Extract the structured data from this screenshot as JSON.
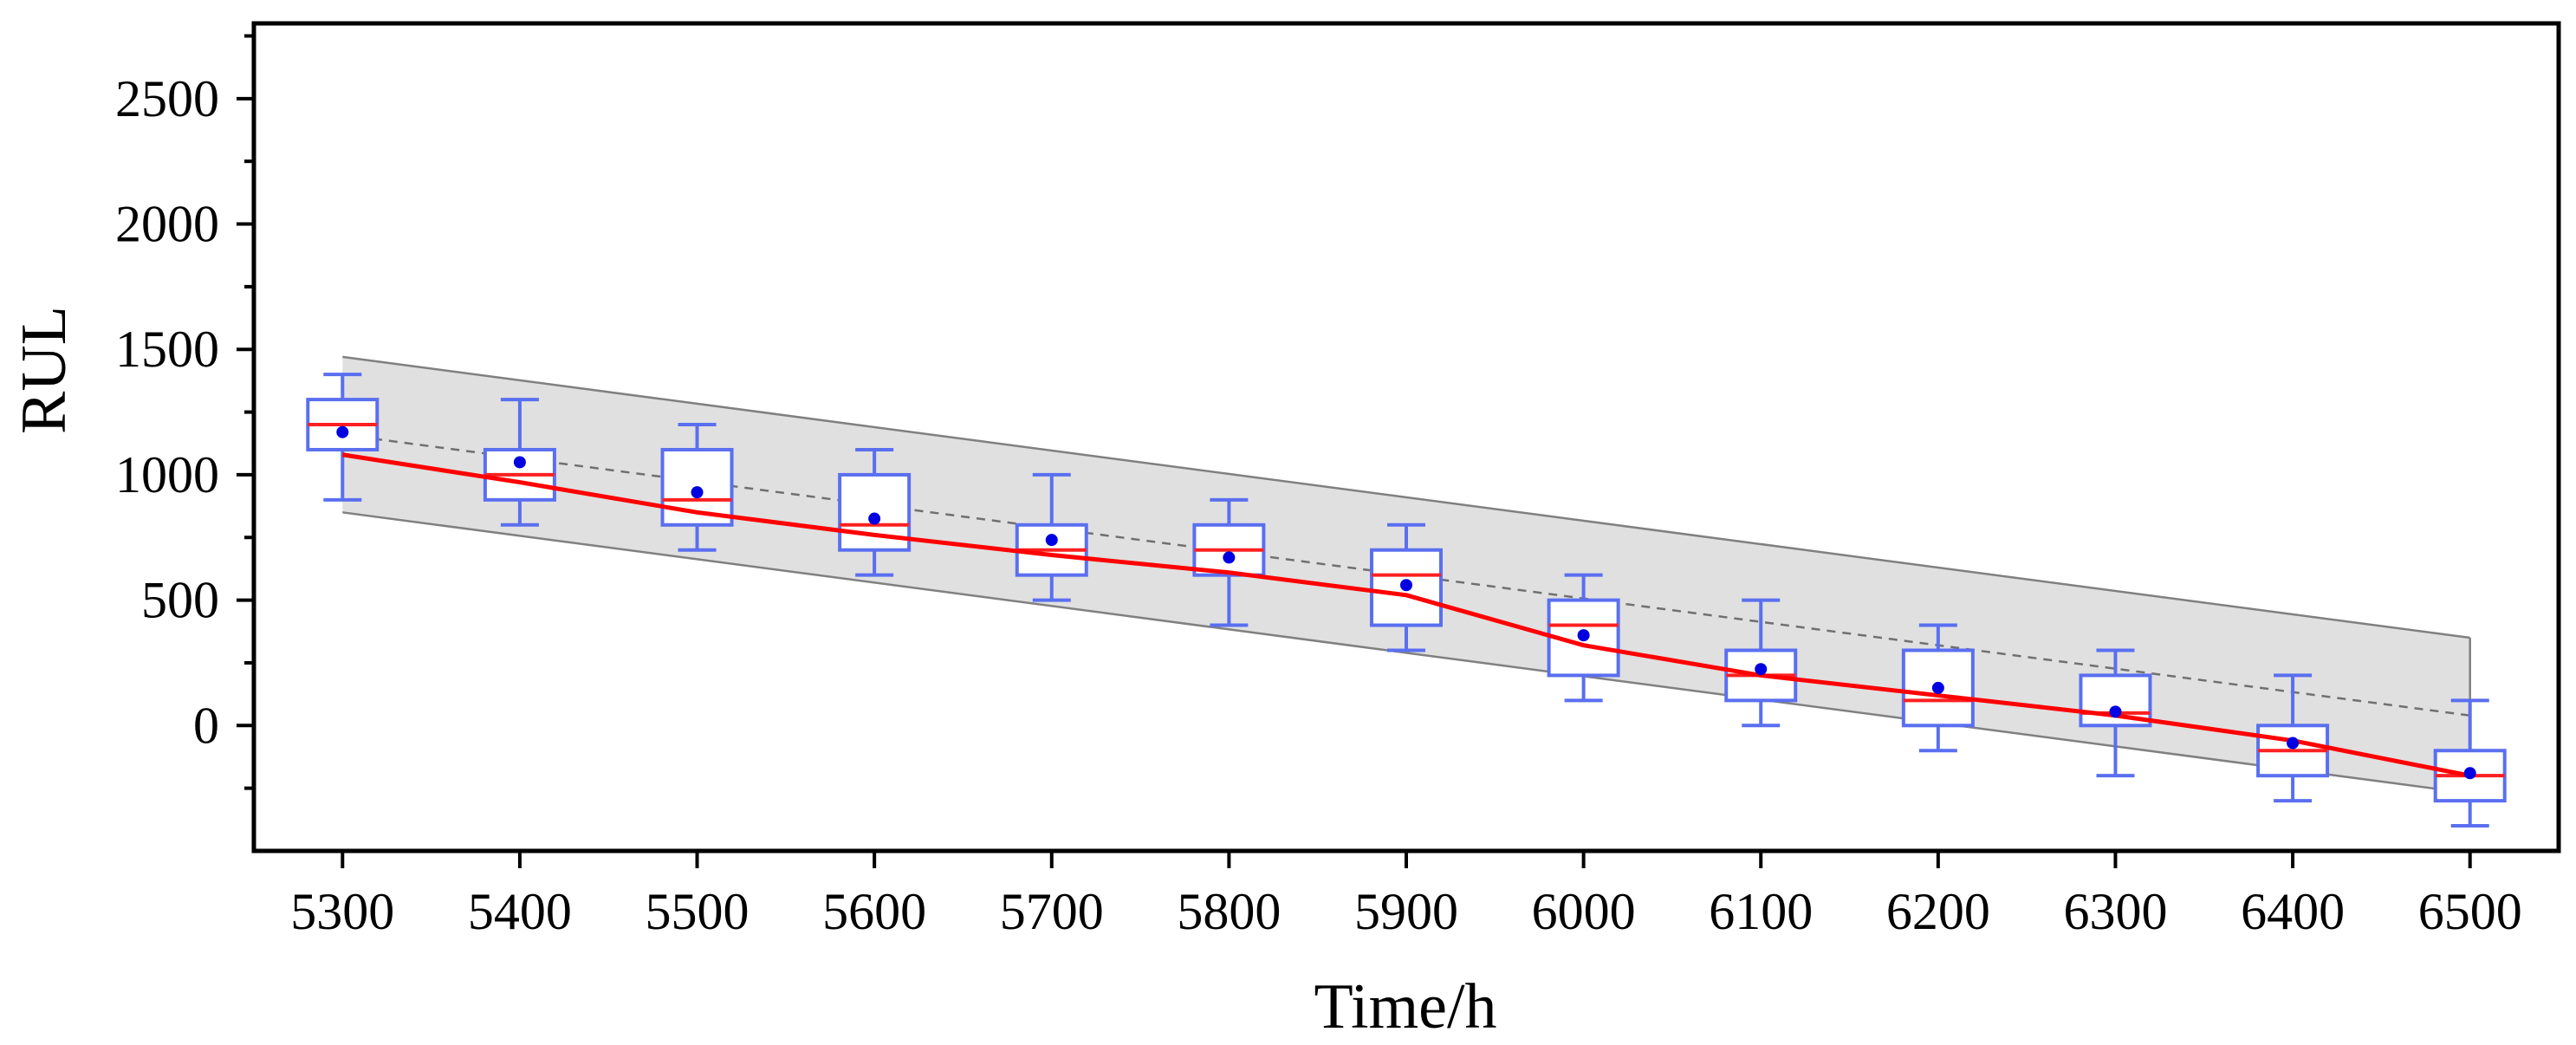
{
  "chart_data": {
    "type": "box",
    "title": "",
    "xlabel": "Time/h",
    "ylabel": "RUL",
    "xlim": [
      5250,
      6550
    ],
    "ylim": [
      -500,
      2800
    ],
    "x_ticks": [
      5300,
      5400,
      5500,
      5600,
      5700,
      5800,
      5900,
      6000,
      6100,
      6200,
      6300,
      6400,
      6500
    ],
    "x_tick_labels": [
      "5300",
      "5400",
      "5500",
      "5600",
      "5700",
      "5800",
      "5900",
      "6000",
      "6100",
      "6200",
      "6300",
      "6400",
      "6500"
    ],
    "y_ticks": [
      0,
      500,
      1000,
      1500,
      2000,
      2500
    ],
    "y_tick_labels": [
      "0",
      "500",
      "1000",
      "1500",
      "2000",
      "2500"
    ],
    "y_minor_ticks": [
      -250,
      250,
      750,
      1250,
      1750,
      2250,
      2750
    ],
    "grid": false,
    "colors": {
      "box": "#5a6ff0",
      "median": "#ff2020",
      "mean_point": "#0000e0",
      "prediction_line": "#ff0000",
      "band_fill": "#e0e0e0",
      "band_edge": "#808080",
      "true_line": "#707070"
    },
    "boxes": [
      {
        "x": 5300,
        "whisker_low": 900,
        "q1": 1100,
        "median": 1200,
        "q3": 1300,
        "whisker_high": 1400,
        "mean": 1170
      },
      {
        "x": 5400,
        "whisker_low": 800,
        "q1": 900,
        "median": 1000,
        "q3": 1100,
        "whisker_high": 1300,
        "mean": 1050
      },
      {
        "x": 5500,
        "whisker_low": 700,
        "q1": 800,
        "median": 900,
        "q3": 1100,
        "whisker_high": 1200,
        "mean": 930
      },
      {
        "x": 5600,
        "whisker_low": 600,
        "q1": 700,
        "median": 800,
        "q3": 1000,
        "whisker_high": 1100,
        "mean": 825
      },
      {
        "x": 5700,
        "whisker_low": 500,
        "q1": 600,
        "median": 700,
        "q3": 800,
        "whisker_high": 1000,
        "mean": 740
      },
      {
        "x": 5800,
        "whisker_low": 400,
        "q1": 600,
        "median": 700,
        "q3": 800,
        "whisker_high": 900,
        "mean": 670
      },
      {
        "x": 5900,
        "whisker_low": 300,
        "q1": 400,
        "median": 600,
        "q3": 700,
        "whisker_high": 800,
        "mean": 560
      },
      {
        "x": 6000,
        "whisker_low": 100,
        "q1": 200,
        "median": 400,
        "q3": 500,
        "whisker_high": 600,
        "mean": 360
      },
      {
        "x": 6100,
        "whisker_low": 0,
        "q1": 100,
        "median": 200,
        "q3": 300,
        "whisker_high": 500,
        "mean": 225
      },
      {
        "x": 6200,
        "whisker_low": -100,
        "q1": 0,
        "median": 100,
        "q3": 300,
        "whisker_high": 400,
        "mean": 150
      },
      {
        "x": 6300,
        "whisker_low": -200,
        "q1": 0,
        "median": 50,
        "q3": 200,
        "whisker_high": 300,
        "mean": 55
      },
      {
        "x": 6400,
        "whisker_low": -300,
        "q1": -200,
        "median": -100,
        "q3": 0,
        "whisker_high": 200,
        "mean": -70
      },
      {
        "x": 6500,
        "whisker_low": -400,
        "q1": -300,
        "median": -200,
        "q3": -100,
        "whisker_high": 100,
        "mean": -190
      }
    ],
    "prediction_line": {
      "x": [
        5300,
        5400,
        5500,
        5600,
        5700,
        5800,
        5900,
        6000,
        6100,
        6200,
        6300,
        6400,
        6500
      ],
      "y": [
        1080,
        970,
        850,
        760,
        680,
        610,
        520,
        320,
        200,
        120,
        40,
        -60,
        -200
      ]
    },
    "true_rul_line": {
      "x": [
        5300,
        6500
      ],
      "y": [
        1160,
        40
      ]
    },
    "confidence_band": {
      "x": [
        5300,
        6500
      ],
      "upper": [
        1470,
        350
      ],
      "lower": [
        850,
        -270
      ]
    }
  }
}
